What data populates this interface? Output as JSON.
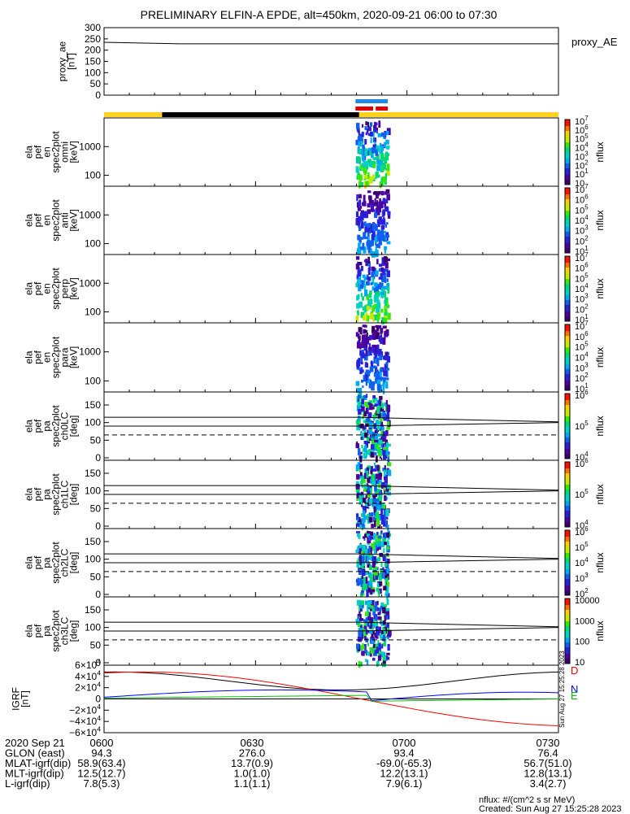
{
  "title": "PRELIMINARY ELFIN-A EPDE, alt=450km, 2020-09-21 06:00 to 07:30",
  "chart_data": {
    "type": "heatmap",
    "time_ticks": [
      "0600",
      "0630",
      "0700",
      "0730"
    ],
    "panels": [
      {
        "id": "proxy_ae",
        "ylabel": [
          "proxy_ae",
          "[nT]"
        ],
        "right_label": "proxy_AE",
        "ylim": [
          0,
          300
        ],
        "yticks": [
          "0",
          "50",
          "100",
          "150",
          "200",
          "250",
          "300"
        ],
        "series": [
          {
            "x_min": [
              0,
              15,
              90
            ],
            "y": [
              235,
              228,
              228
            ]
          }
        ]
      },
      {
        "id": "omni",
        "ylabel": [
          "ela",
          "pef",
          "en",
          "spec2plot",
          "omni",
          "[keV]"
        ],
        "yticks": [
          "100",
          "1000"
        ],
        "cbar_label": "nflux",
        "cbar_ticks": [
          "10",
          "10^1",
          "10^2",
          "10^3",
          "10^4",
          "10^5",
          "10^6",
          "10^7"
        ]
      },
      {
        "id": "anti",
        "ylabel": [
          "ela",
          "pef",
          "en",
          "spec2plot",
          "anti",
          "[keV]"
        ],
        "yticks": [
          "100",
          "1000"
        ],
        "cbar_label": "nflux",
        "cbar_ticks": [
          "10^1",
          "10^2",
          "10^3",
          "10^4",
          "10^5",
          "10^6",
          "10^7"
        ]
      },
      {
        "id": "perp",
        "ylabel": [
          "ela",
          "pef",
          "en",
          "spec2plot",
          "perp",
          "[keV]"
        ],
        "yticks": [
          "100",
          "1000"
        ],
        "cbar_label": "nflux",
        "cbar_ticks": [
          "10^1",
          "10^2",
          "10^3",
          "10^4",
          "10^5",
          "10^6",
          "10^7"
        ]
      },
      {
        "id": "para",
        "ylabel": [
          "ela",
          "pef",
          "en",
          "spec2plot",
          "para",
          "[keV]"
        ],
        "yticks": [
          "100",
          "1000"
        ],
        "cbar_label": "nflux",
        "cbar_ticks": [
          "10^1",
          "10^2",
          "10^3",
          "10^4",
          "10^5",
          "10^6",
          "10^7"
        ]
      },
      {
        "id": "ch0LC",
        "ylabel": [
          "ela",
          "pef",
          "pa",
          "spec2plot",
          "ch0LC",
          "[deg]"
        ],
        "yticks": [
          "0",
          "50",
          "100",
          "150"
        ],
        "cbar_label": "nflux",
        "cbar_ticks": [
          "10^4",
          "10^5",
          "10^6"
        ]
      },
      {
        "id": "ch1LC",
        "ylabel": [
          "ela",
          "pef",
          "pa",
          "spec2plot",
          "ch1LC",
          "[deg]"
        ],
        "yticks": [
          "0",
          "50",
          "100",
          "150"
        ],
        "cbar_label": "nflux",
        "cbar_ticks": [
          "10^4",
          "10^5",
          "10^6"
        ]
      },
      {
        "id": "ch2LC",
        "ylabel": [
          "ela",
          "pef",
          "pa",
          "spec2plot",
          "ch2LC",
          "[deg]"
        ],
        "yticks": [
          "0",
          "50",
          "100",
          "150"
        ],
        "cbar_label": "nflux",
        "cbar_ticks": [
          "10^2",
          "10^3",
          "10^4",
          "10^5",
          "10^6"
        ]
      },
      {
        "id": "ch3LC",
        "ylabel": [
          "ela",
          "pef",
          "pa",
          "spec2plot",
          "ch3LC",
          "[deg]"
        ],
        "yticks": [
          "0",
          "50",
          "100",
          "150"
        ],
        "cbar_label": "nflux",
        "cbar_ticks": [
          "10",
          "100",
          "1000",
          "10000"
        ]
      },
      {
        "id": "igrf",
        "ylabel": [
          "IGRF",
          "[nT]"
        ],
        "yticks": [
          "−6×10^4",
          "−4×10^4",
          "−2×10^4",
          "0",
          "2×10^4",
          "4×10^4",
          "6×10^4"
        ],
        "ylim": [
          -60000,
          60000
        ],
        "legend": [
          {
            "name": "D",
            "color": "#ff0000"
          },
          {
            "name": "N",
            "color": "#0000ff"
          },
          {
            "name": "E",
            "color": "#00c000"
          }
        ],
        "created_label": "Sun Aug 27 15:25:28 2023"
      }
    ],
    "pa_lines": {
      "solid": [
        90,
        115
      ],
      "dashed": 65
    },
    "orbit_bar": {
      "color_outside": "#ffd21f",
      "color_inside": "#000000",
      "black_from_min": 11.5,
      "black_to_min": 50.5
    },
    "science_bars": {
      "blue": "#1e88e5",
      "red": "#e00000",
      "blue_span_min": [
        49.8,
        56.2
      ],
      "red_spans_min": [
        [
          49.8,
          53.3
        ],
        [
          53.8,
          56.2
        ]
      ]
    }
  },
  "footer": {
    "rows": [
      {
        "label": "2020 Sep 21",
        "values": [
          "0600",
          "0630",
          "0700",
          "0730"
        ]
      },
      {
        "label": "GLON (east)",
        "values": [
          "94.3",
          "276.0",
          "93.4",
          "76.4"
        ]
      },
      {
        "label": "MLAT-igrf(dip)",
        "values": [
          "58.9(63.4)",
          "13.7(0.9)",
          "-69.0(-65.3)",
          "56.7(51.0)"
        ]
      },
      {
        "label": "MLT-igrf(dip)",
        "values": [
          "12.5(12.7)",
          "1.0(1.0)",
          "12.2(13.1)",
          "12.8(13.1)"
        ]
      },
      {
        "label": "L-igrf(dip)",
        "values": [
          "7.8(5.3)",
          "1.1(1.1)",
          "7.9(6.1)",
          "3.4(2.7)"
        ]
      }
    ],
    "units_note": "nflux: #/(cm^2 s sr MeV)",
    "created": "Created: Sun Aug 27 15:25:28 2023"
  }
}
